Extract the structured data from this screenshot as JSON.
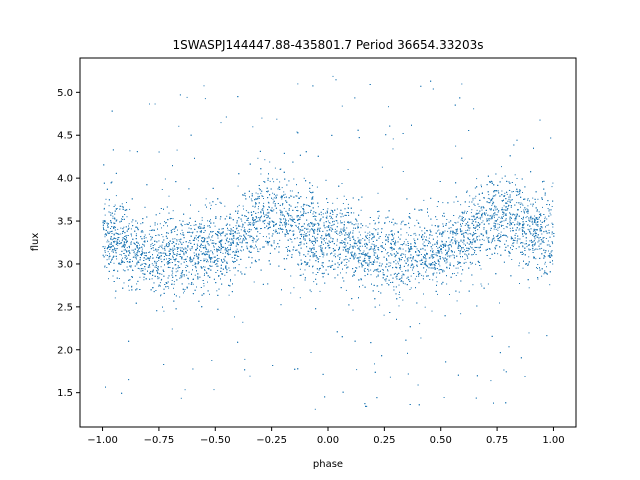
{
  "chart_data": {
    "type": "scatter",
    "title": "1SWASPJ144447.88-435801.7 Period 36654.33203s",
    "xlabel": "phase",
    "ylabel": "flux",
    "xlim": [
      -1.1,
      1.1
    ],
    "ylim": [
      1.1,
      5.4
    ],
    "x_ticks": [
      -1.0,
      -0.75,
      -0.5,
      -0.25,
      0.0,
      0.25,
      0.5,
      0.75,
      1.0
    ],
    "x_tick_labels": [
      "−1.00",
      "−0.75",
      "−0.50",
      "−0.25",
      "0.00",
      "0.25",
      "0.50",
      "0.75",
      "1.00"
    ],
    "y_ticks": [
      1.5,
      2.0,
      2.5,
      3.0,
      3.5,
      4.0,
      4.5,
      5.0
    ],
    "y_tick_labels": [
      "1.5",
      "2.0",
      "2.5",
      "3.0",
      "3.5",
      "4.0",
      "4.5",
      "5.0"
    ],
    "grid": false,
    "color": "#1f77b4",
    "series": [
      {
        "x_range": [
          -1.0,
          1.0
        ],
        "profile_phase": [
          -1.0,
          -0.75,
          -0.5,
          -0.25,
          0.0,
          0.25,
          0.5,
          0.75,
          1.0
        ],
        "profile_flux_center": [
          3.3,
          3.1,
          3.15,
          3.55,
          3.3,
          3.1,
          3.15,
          3.55,
          3.3
        ],
        "flux_spread": [
          2.8,
          4.0
        ],
        "outlier_flux_range": [
          1.3,
          5.2
        ]
      }
    ]
  }
}
